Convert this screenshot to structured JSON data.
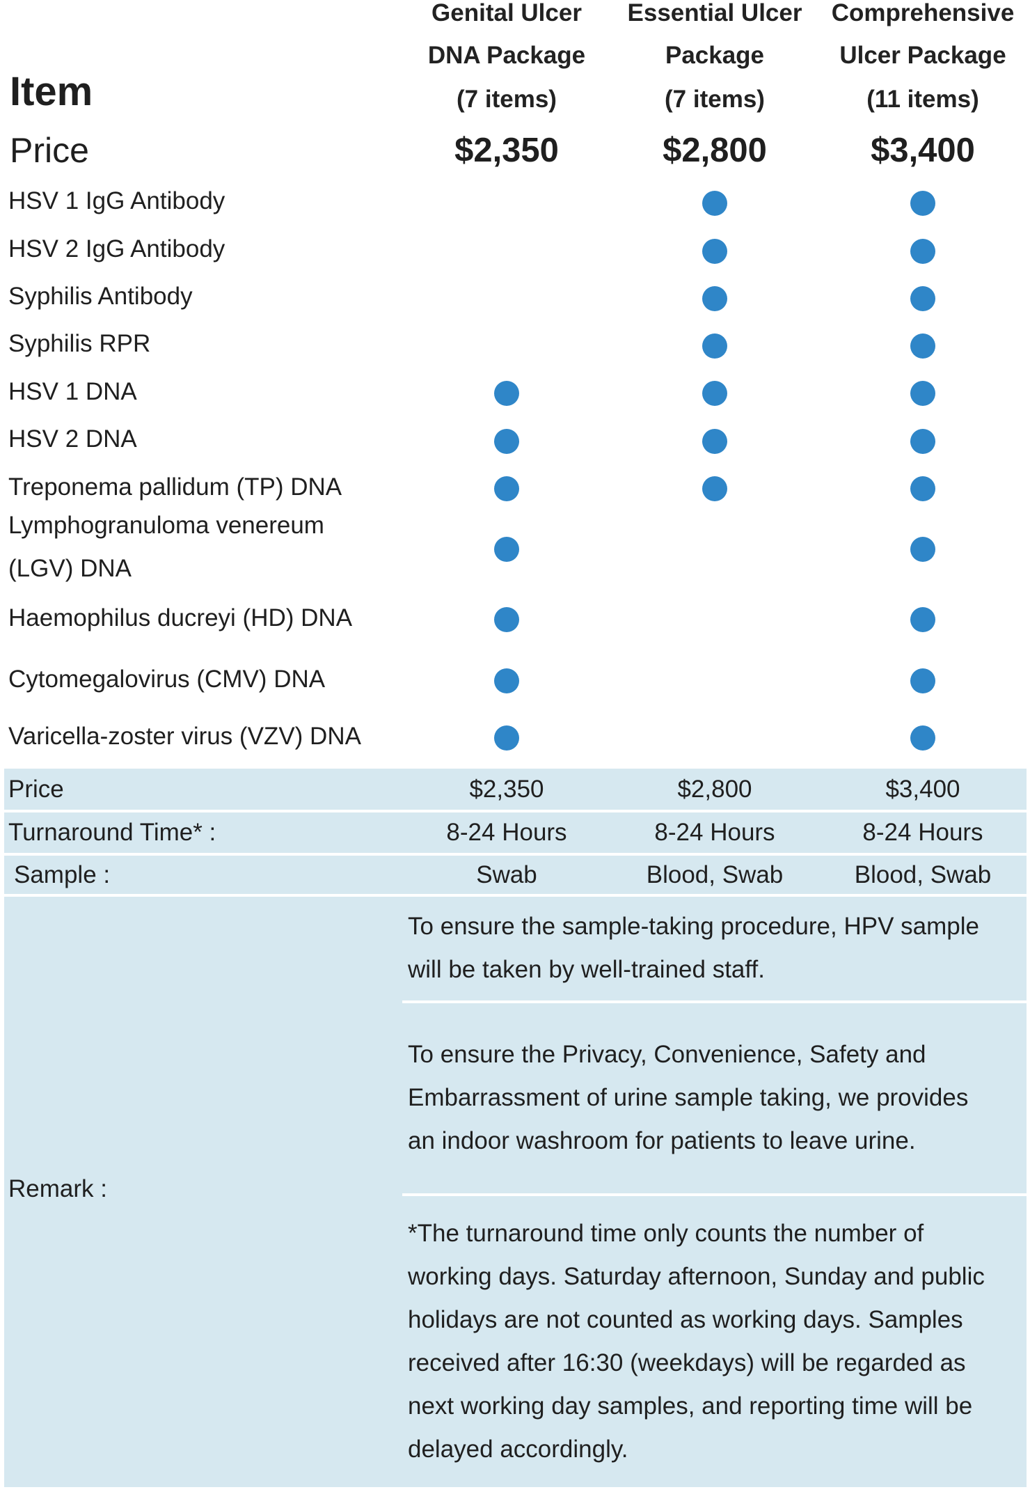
{
  "header": {
    "item_label": "Item",
    "price_label": "Price",
    "packages": [
      {
        "line1": "Genital Ulcer",
        "line2": "DNA Package",
        "line3": "(7 items)",
        "price": "$2,350"
      },
      {
        "line1": "Essential Ulcer",
        "line2": "Package",
        "line3": "(7 items)",
        "price": "$2,800"
      },
      {
        "line1": "Comprehensive",
        "line2": "Ulcer Package",
        "line3": "(11 items)",
        "price": "$3,400"
      }
    ]
  },
  "tests": [
    {
      "name": "HSV 1 IgG Antibody",
      "included": [
        false,
        true,
        true
      ]
    },
    {
      "name": "HSV 2 IgG Antibody",
      "included": [
        false,
        true,
        true
      ]
    },
    {
      "name": "Syphilis Antibody",
      "included": [
        false,
        true,
        true
      ]
    },
    {
      "name": "Syphilis RPR",
      "included": [
        false,
        true,
        true
      ]
    },
    {
      "name": "HSV 1 DNA",
      "included": [
        true,
        true,
        true
      ]
    },
    {
      "name": "HSV 2 DNA",
      "included": [
        true,
        true,
        true
      ]
    },
    {
      "name": "Treponema pallidum (TP) DNA",
      "included": [
        true,
        true,
        true
      ]
    },
    {
      "name_line1": "Lymphogranuloma venereum",
      "name_line2": "(LGV) DNA",
      "included": [
        true,
        false,
        true
      ]
    },
    {
      "name": "Haemophilus ducreyi (HD) DNA",
      "included": [
        true,
        false,
        true
      ]
    },
    {
      "name": "Cytomegalovirus (CMV) DNA",
      "included": [
        true,
        false,
        true
      ]
    },
    {
      "name": "Varicella-zoster virus (VZV) DNA",
      "included": [
        true,
        false,
        true
      ]
    }
  ],
  "summary": {
    "price": {
      "label": "Price",
      "values": [
        "$2,350",
        "$2,800",
        "$3,400"
      ]
    },
    "turnaround": {
      "label": "Turnaround Time* :",
      "values": [
        "8-24 Hours",
        "8-24 Hours",
        "8-24 Hours"
      ]
    },
    "sample": {
      "label": "Sample :",
      "values": [
        "Swab",
        "Blood, Swab",
        "Blood, Swab"
      ]
    }
  },
  "remark": {
    "label": "Remark :",
    "para1": [
      "To ensure the sample-taking procedure, HPV sample",
      "will be taken by well-trained staff."
    ],
    "para2": [
      "To ensure the Privacy, Convenience, Safety and",
      "Embarrassment of urine sample taking, we provides",
      "an indoor washroom for patients to leave urine."
    ],
    "para3": [
      "*The turnaround time only counts the number of",
      "working days. Saturday afternoon, Sunday and public",
      "holidays are not counted as working days. Samples",
      "received after 16:30 (weekdays) will be regarded as",
      "next working day samples, and reporting time will be",
      "delayed accordingly."
    ]
  },
  "colors": {
    "dot": "#2f86c8",
    "band": "#d6e8f0"
  }
}
